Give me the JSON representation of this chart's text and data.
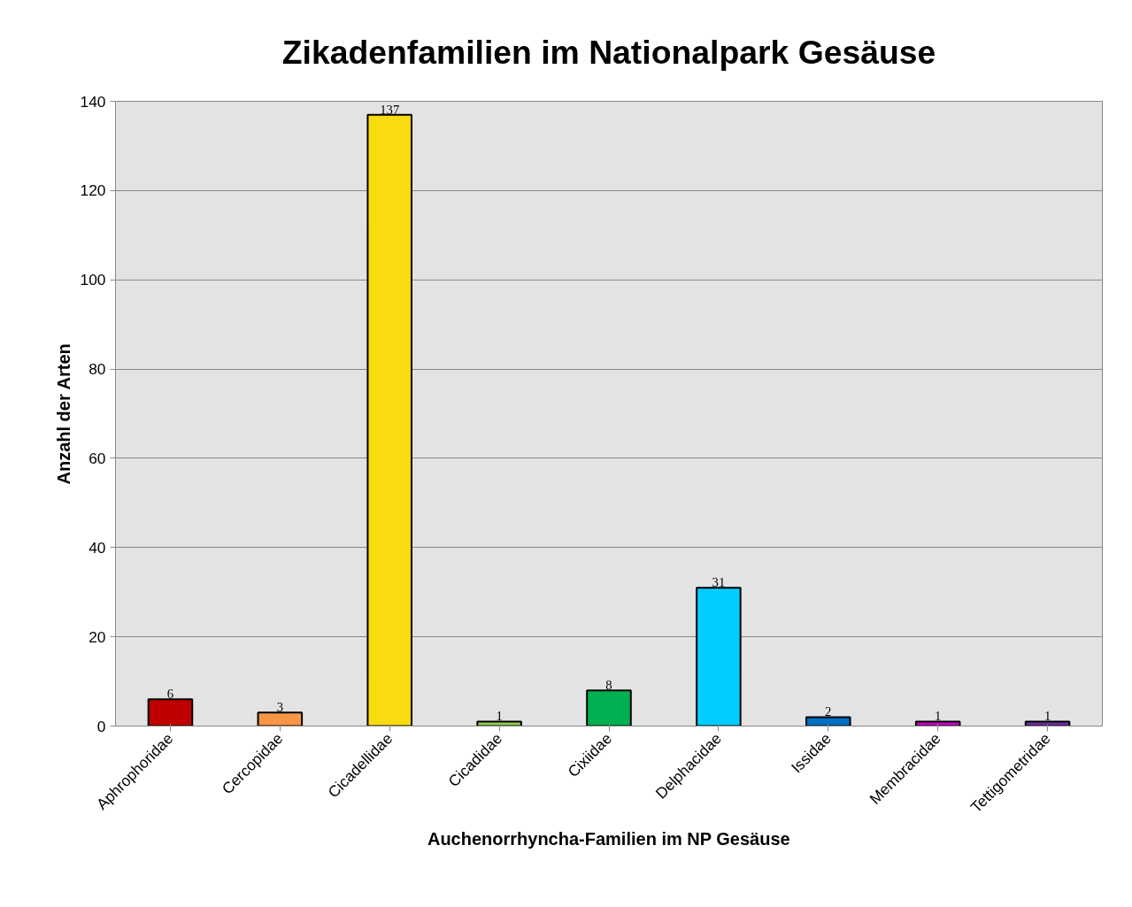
{
  "chart_data": {
    "type": "bar",
    "title": "Zikadenfamilien im Nationalpark Gesäuse",
    "xlabel": "Auchenorrhyncha-Familien im NP Gesäuse",
    "ylabel": "Anzahl der Arten",
    "categories": [
      "Aphrophoridae",
      "Cercopidae",
      "Cicadellidae",
      "Cicadidae",
      "Cixiidae",
      "Delphacidae",
      "Issidae",
      "Membracidae",
      "Tettigometridae"
    ],
    "values": [
      6,
      3,
      137,
      1,
      8,
      31,
      2,
      1,
      1
    ],
    "colors": [
      "#c00000",
      "#f79646",
      "#f9dc10",
      "#92d050",
      "#00b050",
      "#00ccff",
      "#0070c0",
      "#cc00cc",
      "#7030a0"
    ],
    "ylim": [
      0,
      140
    ],
    "yticks": [
      0,
      20,
      40,
      60,
      80,
      100,
      120,
      140
    ],
    "grid": "y",
    "data_labels": true
  }
}
